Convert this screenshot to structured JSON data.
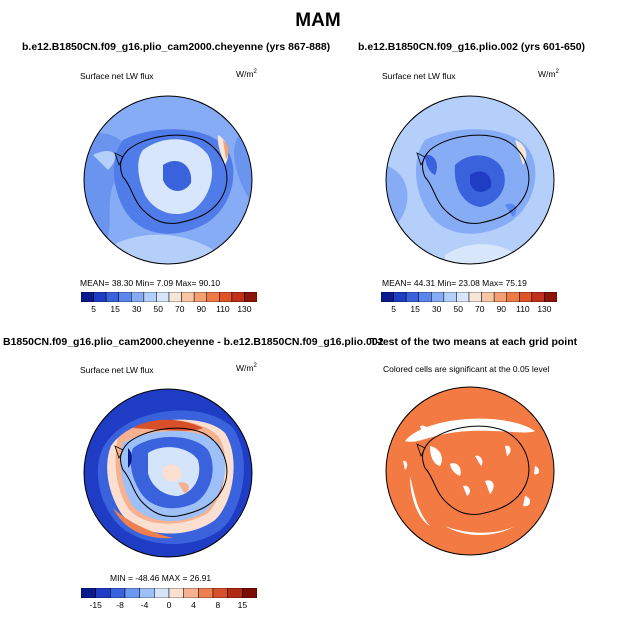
{
  "title": "MAM",
  "panels": [
    {
      "title": "b.e12.B1850CN.f09_g16.plio_cam2000.cheyenne (yrs 867-888)",
      "variable": "Surface net LW flux",
      "units_base": "W/m",
      "units_exp": "2",
      "stats": "MEAN=   38.30   Min=      7.09   Max=   90.10",
      "colorbar_ticks": [
        "5",
        "15",
        "30",
        "50",
        "70",
        "90",
        "110",
        "130"
      ]
    },
    {
      "title": "b.e12.B1850CN.f09_g16.plio.002 (yrs 601-650)",
      "variable": "Surface net LW flux",
      "units_base": "W/m",
      "units_exp": "2",
      "stats": "MEAN=   44.31   Min=   23.08   Max=   75.19",
      "colorbar_ticks": [
        "5",
        "15",
        "30",
        "50",
        "70",
        "90",
        "110",
        "130"
      ]
    },
    {
      "title": "B1850CN.f09_g16.plio_cam2000.cheyenne - b.e12.B1850CN.f09_g16.plio.002",
      "variable": "Surface net LW flux",
      "units_base": "W/m",
      "units_exp": "2",
      "stats": "MIN = -48.46  MAX =   26.91",
      "colorbar_ticks": [
        "-15",
        "-8",
        "-4",
        "0",
        "4",
        "8",
        "15"
      ]
    },
    {
      "title": "T-test of the two means at each grid point",
      "note": "Colored cells are significant at the 0.05 level"
    }
  ],
  "colors": {
    "seq_scale": [
      "#0a1a8c",
      "#1f3cc4",
      "#3a62dc",
      "#5a86ee",
      "#86acf6",
      "#b4cffa",
      "#d8e6fb",
      "#f6e6d8",
      "#f8c6a4",
      "#f5a070",
      "#ee7a48",
      "#de5428",
      "#c0301a",
      "#8c1408"
    ],
    "div_scale": [
      "#0a1a8c",
      "#1f3cc4",
      "#3a62dc",
      "#6a98f2",
      "#9ec0f8",
      "#d4e4fb",
      "#fbe0d2",
      "#f6b290",
      "#ee8050",
      "#d8502a",
      "#b02a14",
      "#7a0c04"
    ],
    "ttest_fill": "#f47a44",
    "land_outline": "#000000"
  }
}
